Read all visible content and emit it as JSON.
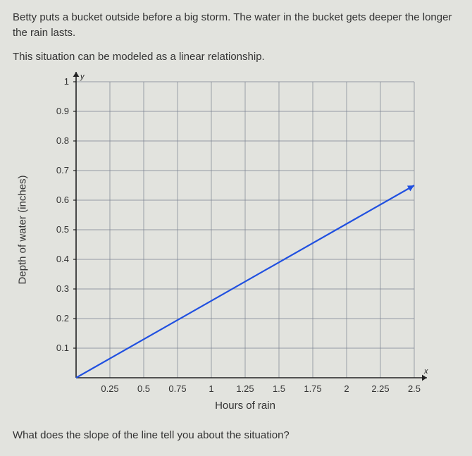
{
  "intro_line1": "Betty puts a bucket outside before a big storm. The water in the bucket gets deeper the longer the rain lasts.",
  "intro_line2": "This situation can be modeled as a linear relationship.",
  "question": "What does the slope of the line tell you about the situation?",
  "chart": {
    "type": "line",
    "x_axis_label": "Hours of rain",
    "y_axis_label": "Depth of water (inches)",
    "x_axis_char": "x",
    "y_axis_char": "y",
    "x_ticks": [
      0.25,
      0.5,
      0.75,
      1,
      1.25,
      1.5,
      1.75,
      2,
      2.25,
      2.5
    ],
    "y_ticks": [
      0.1,
      0.2,
      0.3,
      0.4,
      0.5,
      0.6,
      0.7,
      0.8,
      0.9,
      1
    ],
    "xlim": [
      0,
      2.5
    ],
    "ylim": [
      0,
      1
    ],
    "line_points": [
      [
        0,
        0
      ],
      [
        2.5,
        0.65
      ]
    ],
    "line_color": "#2050e0",
    "line_width": 2.2,
    "grid_color": "#7a8290",
    "grid_width": 0.7,
    "axis_color": "#222222",
    "axis_width": 1.6,
    "background_color": "#e2e3de",
    "tick_font_size": 13,
    "label_font_size": 15,
    "arrow_size": 7,
    "plot_inner_x": 80,
    "plot_inner_y": 15,
    "plot_inner_w": 480,
    "plot_inner_h": 420
  }
}
